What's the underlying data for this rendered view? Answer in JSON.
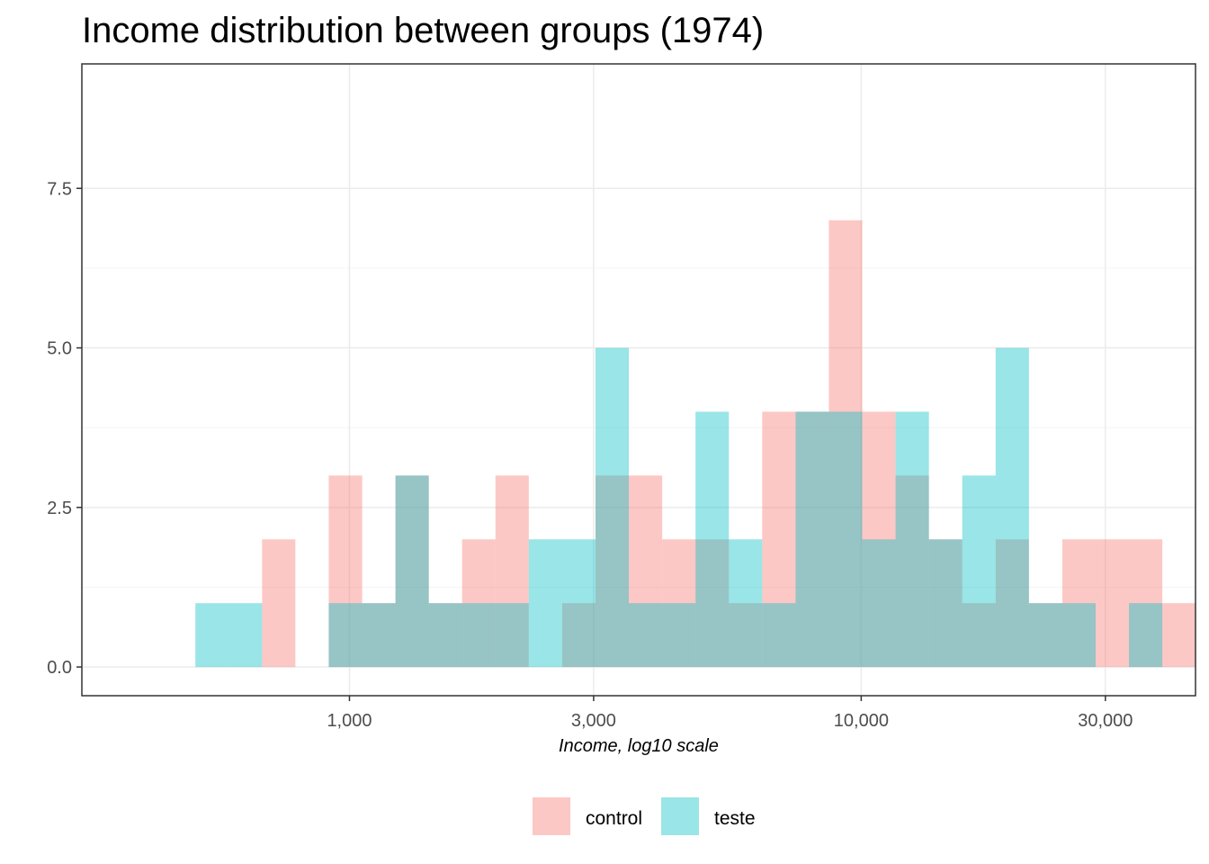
{
  "chart_data": {
    "type": "histogram",
    "title": "Income distribution between groups (1974)",
    "xlabel": "Income, log10 scale",
    "ylabel": "",
    "x_scale": "log10",
    "x_ticks": [
      1000,
      3000,
      10000,
      30000
    ],
    "x_tick_labels": [
      "1,000",
      "3,000",
      "10,000",
      "30,000"
    ],
    "y_ticks": [
      0,
      2.5,
      5,
      7.5
    ],
    "y_tick_labels": [
      "0.0",
      "2.5",
      "5.0",
      "7.5"
    ],
    "ylim": [
      -0.45,
      9.45
    ],
    "xlim": [
      300,
      45000
    ],
    "bin_edges": [
      500,
      581,
      675,
      784,
      911,
      1059,
      1230,
      1429,
      1660,
      1929,
      2241,
      2604,
      3025,
      3515,
      4084,
      4745,
      5513,
      6405,
      7442,
      8646,
      10046,
      11672,
      13561,
      15756,
      18306,
      21269,
      24711,
      28711,
      33357,
      38756,
      45027
    ],
    "grid": true,
    "legend_position": "bottom",
    "series": [
      {
        "name": "control",
        "color": "#F8766D",
        "values": [
          0,
          0,
          2,
          0,
          3,
          1,
          3,
          1,
          2,
          3,
          0,
          1,
          3,
          3,
          2,
          2,
          1,
          4,
          4,
          7,
          4,
          3,
          2,
          1,
          2,
          1,
          2,
          2,
          2,
          1
        ]
      },
      {
        "name": "teste",
        "color": "#00BFC4",
        "values": [
          1,
          1,
          0,
          0,
          1,
          1,
          3,
          1,
          1,
          1,
          2,
          2,
          5,
          1,
          1,
          4,
          2,
          1,
          4,
          4,
          2,
          4,
          2,
          3,
          5,
          1,
          1,
          0,
          1,
          0
        ]
      }
    ]
  }
}
